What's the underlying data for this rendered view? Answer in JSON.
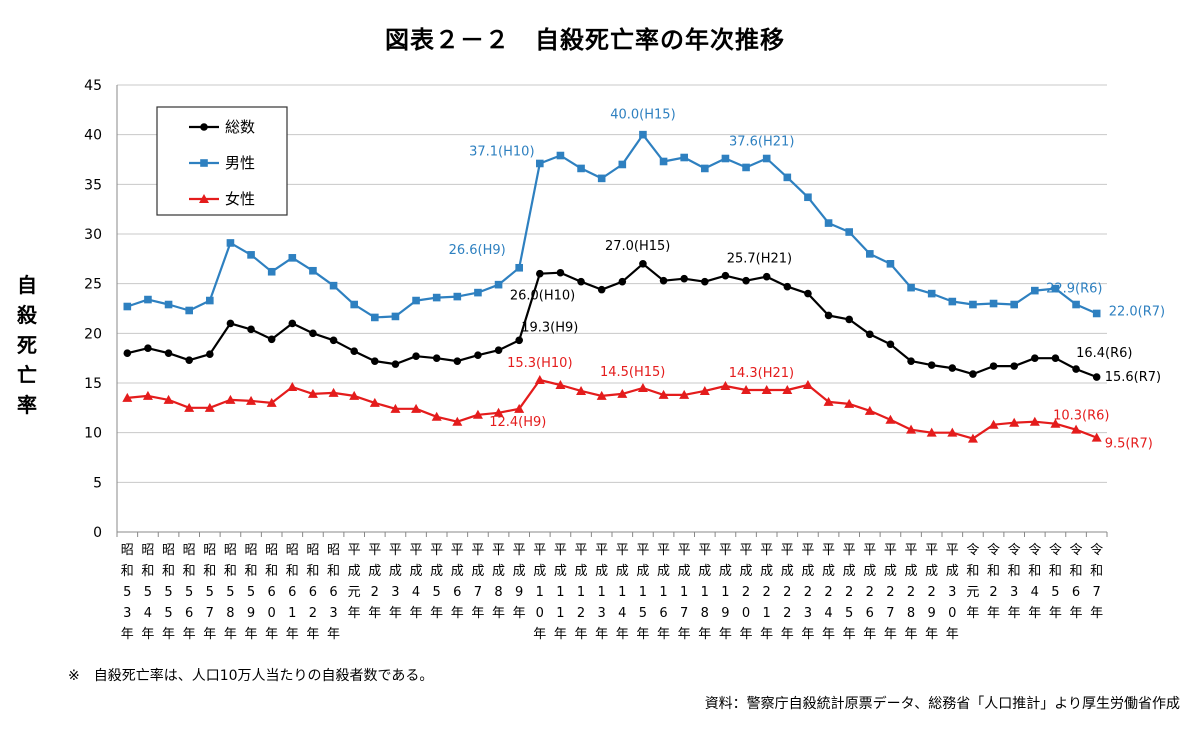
{
  "title": "図表２－２　自殺死亡率の年次推移",
  "ylabel": "自殺死亡率",
  "footnote": "※　自殺死亡率は、人口10万人当たりの自殺者数である。",
  "source": "資料：警察庁自殺統計原票データ、総務省「人口推計」より厚生労働省作成",
  "chart_data": {
    "type": "line",
    "ylim": [
      0,
      45
    ],
    "yticks": [
      "0",
      "5",
      "10",
      "15",
      "20",
      "25",
      "30",
      "35",
      "40",
      "45"
    ],
    "grid": true,
    "legend_position": "top-left",
    "categories": [
      "昭和53年",
      "昭和54年",
      "昭和55年",
      "昭和56年",
      "昭和57年",
      "昭和58年",
      "昭和59年",
      "昭和60年",
      "昭和61年",
      "昭和62年",
      "昭和63年",
      "平成元年",
      "平成2年",
      "平成3年",
      "平成4年",
      "平成5年",
      "平成6年",
      "平成7年",
      "平成8年",
      "平成9年",
      "平成10年",
      "平成11年",
      "平成12年",
      "平成13年",
      "平成14年",
      "平成15年",
      "平成16年",
      "平成17年",
      "平成18年",
      "平成19年",
      "平成20年",
      "平成21年",
      "平成22年",
      "平成23年",
      "平成24年",
      "平成25年",
      "平成26年",
      "平成27年",
      "平成28年",
      "平成29年",
      "平成30年",
      "令和元年",
      "令和2年",
      "令和3年",
      "令和4年",
      "令和5年",
      "令和6年",
      "令和7年"
    ],
    "series": [
      {
        "name": "総数",
        "color": "#000000",
        "marker": "circle",
        "values": [
          18.0,
          18.5,
          18.0,
          17.3,
          17.9,
          21.0,
          20.4,
          19.4,
          21.0,
          20.0,
          19.3,
          18.2,
          17.2,
          16.9,
          17.7,
          17.5,
          17.2,
          17.8,
          18.3,
          19.3,
          26.0,
          26.1,
          25.2,
          24.4,
          25.2,
          27.0,
          25.3,
          25.5,
          25.2,
          25.8,
          25.3,
          25.7,
          24.7,
          24.0,
          21.8,
          21.4,
          19.9,
          18.9,
          17.2,
          16.8,
          16.5,
          15.9,
          16.7,
          16.7,
          17.5,
          17.5,
          16.4,
          15.6
        ]
      },
      {
        "name": "男性",
        "color": "#2E80C0",
        "marker": "square",
        "values": [
          22.7,
          23.4,
          22.9,
          22.3,
          23.3,
          29.1,
          27.9,
          26.2,
          27.6,
          26.3,
          24.8,
          22.9,
          21.6,
          21.7,
          23.3,
          23.6,
          23.7,
          24.1,
          24.9,
          26.6,
          37.1,
          37.9,
          36.6,
          35.6,
          37.0,
          40.0,
          37.3,
          37.7,
          36.6,
          37.6,
          36.7,
          37.6,
          35.7,
          33.7,
          31.1,
          30.2,
          28.0,
          27.0,
          24.6,
          24.0,
          23.2,
          22.9,
          23.0,
          22.9,
          24.3,
          24.5,
          22.9,
          22.0
        ]
      },
      {
        "name": "女性",
        "color": "#E41C1C",
        "marker": "triangle",
        "values": [
          13.5,
          13.7,
          13.3,
          12.5,
          12.5,
          13.3,
          13.2,
          13.0,
          14.6,
          13.9,
          14.0,
          13.7,
          13.0,
          12.4,
          12.4,
          11.6,
          11.1,
          11.8,
          12.0,
          12.4,
          15.3,
          14.8,
          14.2,
          13.7,
          13.9,
          14.5,
          13.8,
          13.8,
          14.2,
          14.7,
          14.3,
          14.3,
          14.3,
          14.8,
          13.1,
          12.9,
          12.2,
          11.3,
          10.3,
          10.0,
          10.0,
          9.4,
          10.8,
          11.0,
          11.1,
          10.9,
          10.3,
          9.5
        ]
      }
    ],
    "annotations": [
      {
        "series": 1,
        "index": 19,
        "text": "26.6(H9)",
        "color": "#2E80C0"
      },
      {
        "series": 1,
        "index": 20,
        "text": "37.1(H10)",
        "color": "#2E80C0"
      },
      {
        "series": 1,
        "index": 25,
        "text": "40.0(H15)",
        "color": "#2E80C0"
      },
      {
        "series": 1,
        "index": 31,
        "text": "37.6(H21)",
        "color": "#2E80C0"
      },
      {
        "series": 1,
        "index": 46,
        "text": "22.9(R6)",
        "color": "#2E80C0"
      },
      {
        "series": 1,
        "index": 47,
        "text": "22.0(R7)",
        "color": "#2E80C0"
      },
      {
        "series": 0,
        "index": 19,
        "text": "19.3(H9)",
        "color": "#000000"
      },
      {
        "series": 0,
        "index": 20,
        "text": "26.0(H10)",
        "color": "#000000"
      },
      {
        "series": 0,
        "index": 25,
        "text": "27.0(H15)",
        "color": "#000000"
      },
      {
        "series": 0,
        "index": 31,
        "text": "25.7(H21)",
        "color": "#000000"
      },
      {
        "series": 0,
        "index": 46,
        "text": "16.4(R6)",
        "color": "#000000"
      },
      {
        "series": 0,
        "index": 47,
        "text": "15.6(R7)",
        "color": "#000000"
      },
      {
        "series": 2,
        "index": 19,
        "text": "12.4(H9)",
        "color": "#E41C1C"
      },
      {
        "series": 2,
        "index": 20,
        "text": "15.3(H10)",
        "color": "#E41C1C"
      },
      {
        "series": 2,
        "index": 25,
        "text": "14.5(H15)",
        "color": "#E41C1C"
      },
      {
        "series": 2,
        "index": 31,
        "text": "14.3(H21)",
        "color": "#E41C1C"
      },
      {
        "series": 2,
        "index": 46,
        "text": "10.3(R6)",
        "color": "#E41C1C"
      },
      {
        "series": 2,
        "index": 47,
        "text": "9.5(R7)",
        "color": "#E41C1C"
      }
    ]
  }
}
